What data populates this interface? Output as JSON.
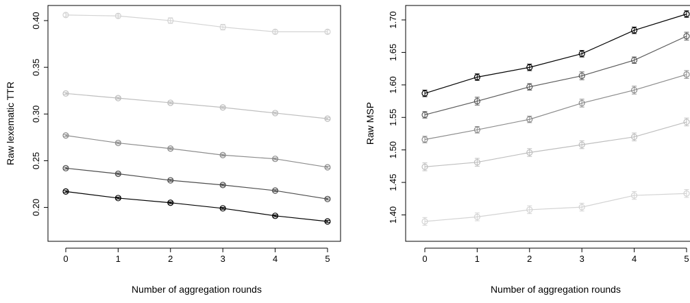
{
  "colors": {
    "background": "#ffffff",
    "axis": "#000000"
  },
  "chart_data": [
    {
      "type": "line",
      "xlabel": "Number of aggregation rounds",
      "ylabel": "Raw lexematic TTR",
      "x": [
        0,
        1,
        2,
        3,
        4,
        5
      ],
      "xlim": [
        0,
        5
      ],
      "ylim": [
        0.185,
        0.407
      ],
      "xticks": [
        "0",
        "1",
        "2",
        "3",
        "4",
        "5"
      ],
      "yticks": [
        0.2,
        0.25,
        0.3,
        0.35,
        0.4
      ],
      "ytick_labels": [
        "0.20",
        "0.25",
        "0.30",
        "0.35",
        "0.40"
      ],
      "grid": false,
      "marker": "circle-with-errorbars",
      "series": [
        {
          "color": "#d3d3d3",
          "values": [
            0.406,
            0.405,
            0.4,
            0.393,
            0.388,
            0.388
          ],
          "errors": [
            0.002,
            0.002,
            0.003,
            0.003,
            0.002,
            0.002
          ]
        },
        {
          "color": "#bebebe",
          "values": [
            0.322,
            0.317,
            0.312,
            0.307,
            0.301,
            0.295
          ],
          "errors": [
            0.001,
            0.001,
            0.001,
            0.001,
            0.001,
            0.001
          ]
        },
        {
          "color": "#8c8c8c",
          "values": [
            0.277,
            0.269,
            0.263,
            0.256,
            0.252,
            0.243
          ],
          "errors": [
            0.001,
            0.001,
            0.001,
            0.001,
            0.001,
            0.001
          ]
        },
        {
          "color": "#4d4d4d",
          "values": [
            0.242,
            0.236,
            0.229,
            0.224,
            0.218,
            0.209
          ],
          "errors": [
            0.001,
            0.001,
            0.001,
            0.001,
            0.001,
            0.001
          ]
        },
        {
          "color": "#000000",
          "values": [
            0.217,
            0.21,
            0.205,
            0.199,
            0.191,
            0.185
          ],
          "errors": [
            0.001,
            0.001,
            0.001,
            0.001,
            0.001,
            0.001
          ]
        }
      ]
    },
    {
      "type": "line",
      "xlabel": "Number of aggregation rounds",
      "ylabel": "Raw MSP",
      "x": [
        0,
        1,
        2,
        3,
        4,
        5
      ],
      "xlim": [
        0,
        5
      ],
      "ylim": [
        1.39,
        1.709
      ],
      "xticks": [
        "0",
        "1",
        "2",
        "3",
        "4",
        "5"
      ],
      "yticks": [
        1.4,
        1.45,
        1.5,
        1.55,
        1.6,
        1.65,
        1.7
      ],
      "ytick_labels": [
        "1.40",
        "1.45",
        "1.50",
        "1.55",
        "1.60",
        "1.65",
        "1.70"
      ],
      "grid": false,
      "marker": "circle-with-errorbars",
      "series": [
        {
          "color": "#d3d3d3",
          "values": [
            1.39,
            1.397,
            1.408,
            1.412,
            1.43,
            1.433
          ],
          "errors": [
            0.006,
            0.006,
            0.006,
            0.006,
            0.006,
            0.006
          ]
        },
        {
          "color": "#bebebe",
          "values": [
            1.474,
            1.481,
            1.496,
            1.508,
            1.52,
            1.543
          ],
          "errors": [
            0.006,
            0.006,
            0.006,
            0.006,
            0.006,
            0.006
          ]
        },
        {
          "color": "#8c8c8c",
          "values": [
            1.516,
            1.531,
            1.547,
            1.572,
            1.592,
            1.616
          ],
          "errors": [
            0.005,
            0.005,
            0.005,
            0.006,
            0.006,
            0.006
          ]
        },
        {
          "color": "#5a5a5a",
          "values": [
            1.554,
            1.575,
            1.597,
            1.614,
            1.638,
            1.675
          ],
          "errors": [
            0.005,
            0.006,
            0.005,
            0.006,
            0.005,
            0.006
          ]
        },
        {
          "color": "#000000",
          "values": [
            1.587,
            1.612,
            1.627,
            1.648,
            1.684,
            1.709
          ],
          "errors": [
            0.005,
            0.005,
            0.005,
            0.005,
            0.005,
            0.005
          ]
        }
      ]
    }
  ]
}
